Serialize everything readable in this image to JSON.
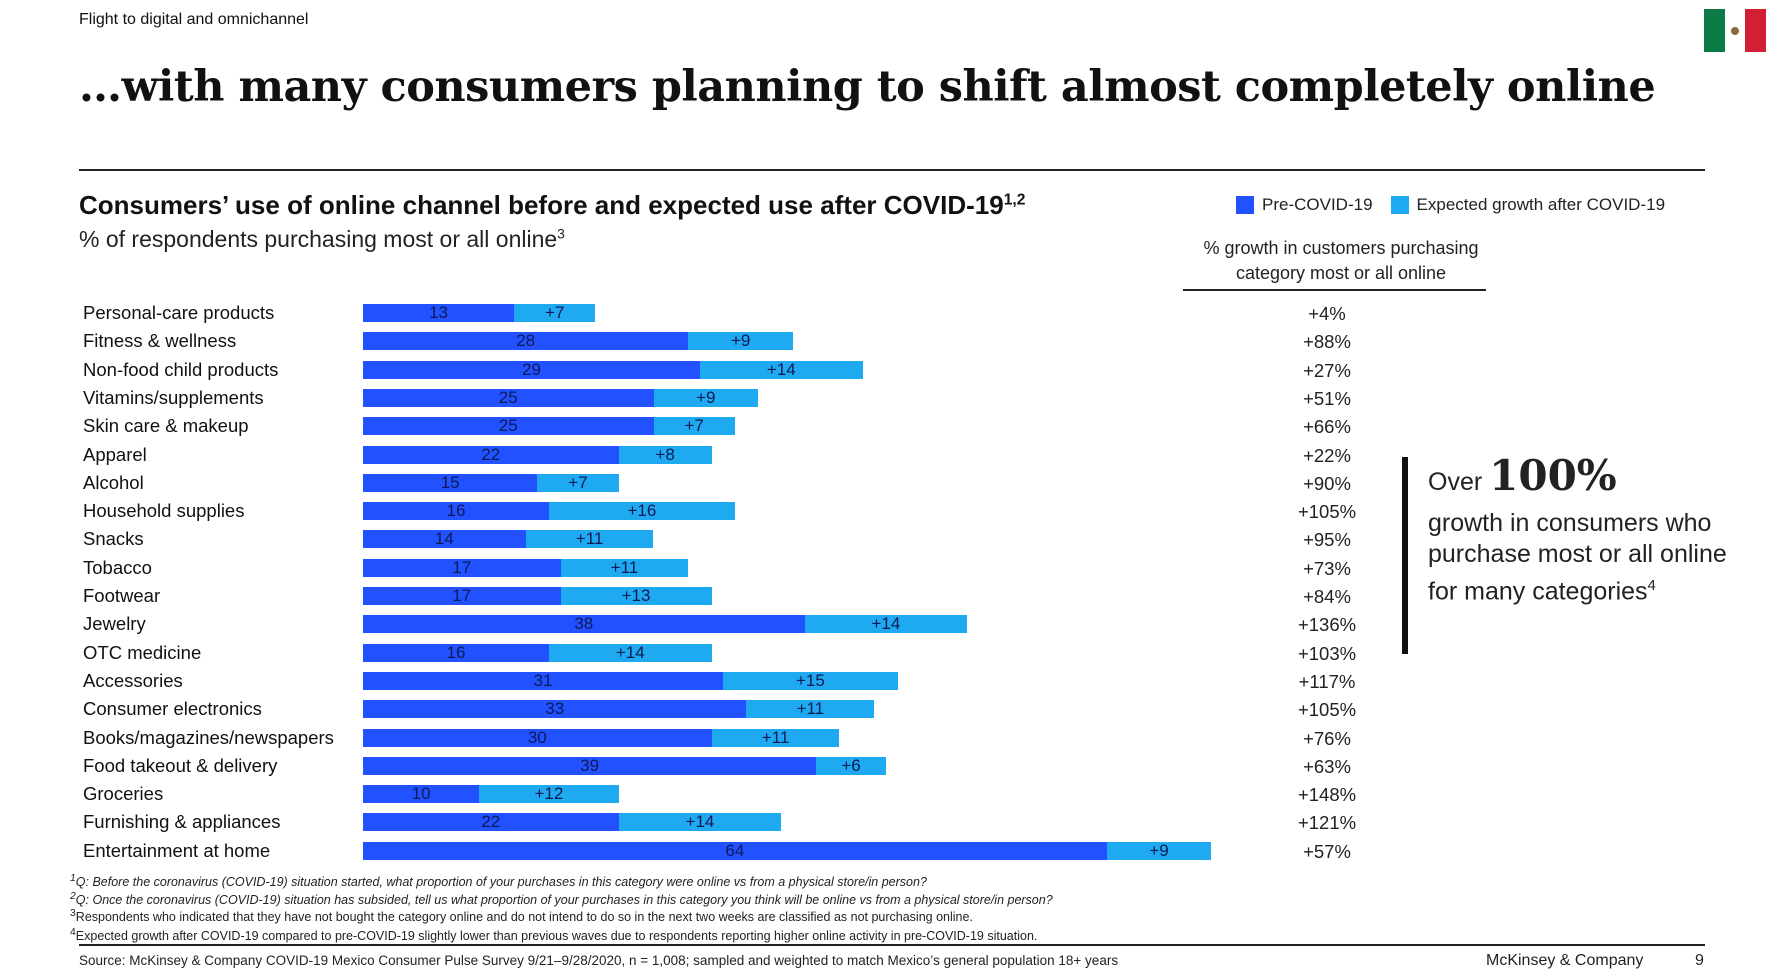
{
  "header": {
    "tracker": "Flight to digital and omnichannel",
    "title": "…with many consumers planning to shift almost completely online",
    "flag": "mexico-flag"
  },
  "chart_data": {
    "type": "bar",
    "stacked": true,
    "orientation": "horizontal",
    "title": "Consumers’ use of online channel before and expected use after COVID-19",
    "title_sup": "1,2",
    "subtitle": "% of respondents purchasing most or all online",
    "subtitle_sup": "3",
    "categories": [
      "Personal-care products",
      "Fitness & wellness",
      "Non-food child products",
      "Vitamins/supplements",
      "Skin care & makeup",
      "Apparel",
      "Alcohol",
      "Household supplies",
      "Snacks",
      "Tobacco",
      "Footwear",
      "Jewelry",
      "OTC medicine",
      "Accessories",
      "Consumer electronics",
      "Books/magazines/newspapers",
      "Food takeout & delivery",
      "Groceries",
      "Furnishing & appliances",
      "Entertainment at home"
    ],
    "series": [
      {
        "name": "Pre-COVID-19",
        "color": "#2251FF",
        "values": [
          13,
          28,
          29,
          25,
          25,
          22,
          15,
          16,
          14,
          17,
          17,
          38,
          16,
          31,
          33,
          30,
          39,
          10,
          22,
          64
        ],
        "labels": [
          "13",
          "28",
          "29",
          "25",
          "25",
          "22",
          "15",
          "16",
          "14",
          "17",
          "17",
          "38",
          "16",
          "31",
          "33",
          "30",
          "39",
          "10",
          "22",
          "64"
        ]
      },
      {
        "name": "Expected growth after COVID-19",
        "color": "#1FA9F0",
        "values": [
          7,
          9,
          14,
          9,
          7,
          8,
          7,
          16,
          11,
          11,
          13,
          14,
          14,
          15,
          11,
          11,
          6,
          12,
          14,
          9
        ],
        "labels": [
          "+7",
          "+9",
          "+14",
          "+9",
          "+7",
          "+8",
          "+7",
          "+16",
          "+11",
          "+11",
          "+13",
          "+14",
          "+14",
          "+15",
          "+11",
          "+11",
          "+6",
          "+12",
          "+14",
          "+9"
        ]
      }
    ],
    "growth_header": "% growth in customers purchasing category most or all online",
    "growth": [
      "+4%",
      "+88%",
      "+27%",
      "+51%",
      "+66%",
      "+22%",
      "+90%",
      "+105%",
      "+95%",
      "+73%",
      "+84%",
      "+136%",
      "+103%",
      "+117%",
      "+105%",
      "+76%",
      "+63%",
      "+148%",
      "+121%",
      "+57%"
    ],
    "xlim": [
      0,
      75
    ],
    "grid": false,
    "legend": "top-right"
  },
  "callout": {
    "prefix": "Over",
    "big": "100%",
    "text": "growth in consumers who purchase most or all online for many categories",
    "sup": "4"
  },
  "footnotes": [
    {
      "mark": "1",
      "text": "Q: Before the coronavirus (COVID-19) situation started, what proportion of your purchases in this category were online vs from a physical store/in person?"
    },
    {
      "mark": "2",
      "text": "Q: Once the coronavirus (COVID-19) situation has subsided, tell us what proportion of your purchases in this category you think will be online vs from a physical store/in person?"
    },
    {
      "mark": "3",
      "text": "Respondents who indicated that they have not bought the category online and do not intend to do so in the next two weeks are classified as not purchasing online."
    },
    {
      "mark": "4",
      "text": "Expected growth after COVID-19 compared to pre-COVID-19 slightly lower than previous waves due to respondents reporting higher online activity in pre-COVID-19 situation."
    }
  ],
  "footer": {
    "source": "Source: McKinsey & Company COVID-19 Mexico Consumer Pulse Survey 9/21–9/28/2020, n = 1,008; sampled and weighted to match Mexico’s general population 18+ years",
    "brand": "McKinsey & Company",
    "page": "9"
  }
}
